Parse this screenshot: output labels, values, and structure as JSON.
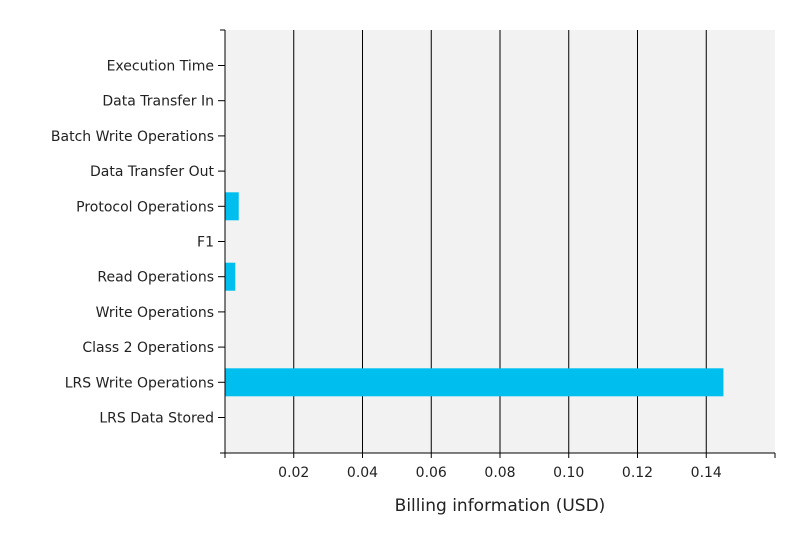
{
  "chart_data": {
    "type": "bar",
    "orientation": "horizontal",
    "title": "",
    "xlabel": "Billing information (USD)",
    "ylabel": "",
    "xlim": [
      0,
      0.16
    ],
    "x_ticks": [
      0.02,
      0.04,
      0.06,
      0.08,
      0.1,
      0.12,
      0.14
    ],
    "x_tick_labels": [
      "0.02",
      "0.04",
      "0.06",
      "0.08",
      "0.10",
      "0.12",
      "0.14"
    ],
    "categories": [
      "Execution Time",
      "Data Transfer In",
      "Batch Write Operations",
      "Data Transfer Out",
      "Protocol Operations",
      "F1",
      "Read Operations",
      "Write Operations",
      "Class 2 Operations",
      "LRS Write Operations",
      "LRS Data Stored"
    ],
    "values": [
      0,
      0,
      0,
      0,
      0.004,
      0,
      0.003,
      0,
      0,
      0.145,
      0
    ],
    "grid": "vertical",
    "bar_color": "#00BFEF",
    "plot_background": "#F2F2F2",
    "grid_color": "#000000"
  }
}
